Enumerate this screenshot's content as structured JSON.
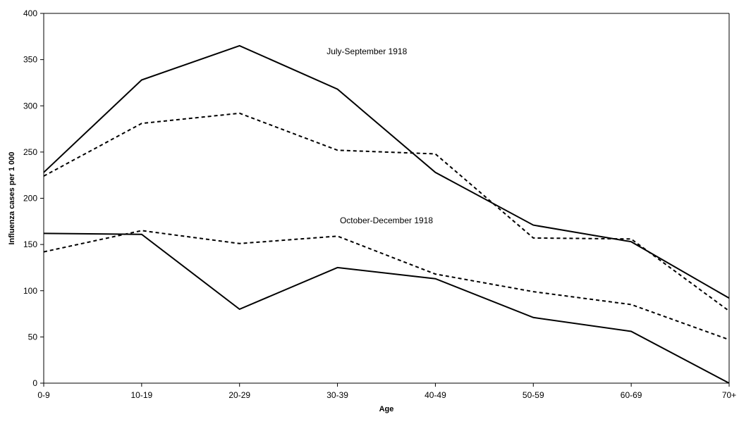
{
  "chart_data": {
    "type": "line",
    "title": "",
    "xlabel": "Age",
    "ylabel": "Influenza cases per 1 000",
    "categories": [
      "0-9",
      "10-19",
      "20-29",
      "30-39",
      "40-49",
      "50-59",
      "60-69",
      "70+"
    ],
    "ylim": [
      0,
      400
    ],
    "yticks": [
      "0",
      "50",
      "100",
      "150",
      "200",
      "250",
      "300",
      "350",
      "400"
    ],
    "grid": false,
    "legend": "none",
    "series": [
      {
        "style": "solid",
        "color": "#000000",
        "values": [
          228,
          328,
          365,
          318,
          228,
          171,
          153,
          92
        ]
      },
      {
        "style": "dashed",
        "color": "#000000",
        "values": [
          224,
          281,
          292,
          252,
          248,
          157,
          156,
          78
        ]
      },
      {
        "style": "solid",
        "color": "#000000",
        "values": [
          162,
          161,
          80,
          125,
          113,
          71,
          56,
          0
        ]
      },
      {
        "style": "dashed",
        "color": "#000000",
        "values": [
          142,
          165,
          151,
          159,
          118,
          99,
          85,
          47
        ]
      }
    ],
    "annotations": [
      {
        "text": "July-September 1918",
        "x_index": 3.3,
        "y": 356
      },
      {
        "text": "October-December 1918",
        "x_index": 3.5,
        "y": 173
      }
    ]
  }
}
